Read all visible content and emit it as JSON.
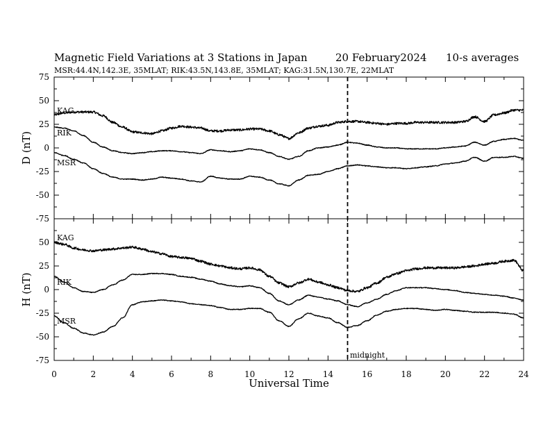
{
  "title": {
    "main": "Magnetic Field Variations at 3 Stations in Japan",
    "date": "20 February2024",
    "averaging": "10-s averages",
    "stations": "MSR:44.4N,142.3E, 35MLAT;  RIK:43.5N,143.8E, 35MLAT;  KAG:31.5N,130.7E, 22MLAT"
  },
  "chart_data": [
    {
      "type": "line",
      "panel": "D",
      "ylabel": "D (nT)",
      "ylim": [
        -75,
        75
      ],
      "yticks": [
        75,
        50,
        25,
        0,
        -25,
        -50,
        -75
      ],
      "xlim": [
        0,
        24
      ],
      "series": [
        {
          "name": "KAG",
          "noise": 1.2,
          "x": [
            0,
            0.5,
            1,
            1.5,
            2,
            2.5,
            3,
            3.5,
            4,
            4.5,
            5,
            5.5,
            6,
            6.5,
            7,
            7.5,
            8,
            8.5,
            9,
            9.5,
            10,
            10.5,
            11,
            11.5,
            12,
            12.5,
            13,
            13.5,
            14,
            14.5,
            15,
            15.5,
            16,
            16.5,
            17,
            17.5,
            18,
            18.5,
            19,
            19.5,
            20,
            20.5,
            21,
            21.5,
            22,
            22.5,
            23,
            23.5,
            24
          ],
          "values": [
            35,
            37,
            38,
            38,
            38,
            34,
            27,
            22,
            17,
            16,
            15,
            18,
            21,
            23,
            22,
            21,
            18,
            18,
            19,
            19,
            20,
            20,
            18,
            14,
            10,
            16,
            21,
            23,
            24,
            27,
            28,
            28,
            27,
            26,
            25,
            26,
            26,
            27,
            27,
            27,
            27,
            27,
            28,
            33,
            28,
            35,
            37,
            40,
            40
          ]
        },
        {
          "name": "RIK",
          "noise": 0.4,
          "x": [
            0,
            0.5,
            1,
            1.5,
            2,
            2.5,
            3,
            3.5,
            4,
            4.5,
            5,
            5.5,
            6,
            6.5,
            7,
            7.5,
            8,
            8.5,
            9,
            9.5,
            10,
            10.5,
            11,
            11.5,
            12,
            12.5,
            13,
            13.5,
            14,
            14.5,
            15,
            15.5,
            16,
            16.5,
            17,
            17.5,
            18,
            18.5,
            19,
            19.5,
            20,
            20.5,
            21,
            21.5,
            22,
            22.5,
            23,
            23.5,
            24
          ],
          "values": [
            22,
            21,
            18,
            13,
            6,
            1,
            -3,
            -5,
            -6,
            -5,
            -4,
            -3,
            -3,
            -4,
            -5,
            -6,
            -2,
            -3,
            -4,
            -3,
            -1,
            -2,
            -5,
            -9,
            -12,
            -9,
            -3,
            0,
            1,
            3,
            6,
            5,
            3,
            1,
            0,
            0,
            -1,
            -1,
            -1,
            -1,
            0,
            1,
            2,
            6,
            3,
            7,
            9,
            10,
            8
          ]
        },
        {
          "name": "MSR",
          "noise": 0.4,
          "x": [
            0,
            0.5,
            1,
            1.5,
            2,
            2.5,
            3,
            3.5,
            4,
            4.5,
            5,
            5.5,
            6,
            6.5,
            7,
            7.5,
            8,
            8.5,
            9,
            9.5,
            10,
            10.5,
            11,
            11.5,
            12,
            12.5,
            13,
            13.5,
            14,
            14.5,
            15,
            15.5,
            16,
            16.5,
            17,
            17.5,
            18,
            18.5,
            19,
            19.5,
            20,
            20.5,
            21,
            21.5,
            22,
            22.5,
            23,
            23.5,
            24
          ],
          "values": [
            -5,
            -8,
            -12,
            -16,
            -22,
            -27,
            -31,
            -33,
            -33,
            -34,
            -33,
            -31,
            -32,
            -33,
            -35,
            -36,
            -30,
            -32,
            -33,
            -33,
            -30,
            -31,
            -34,
            -38,
            -40,
            -34,
            -29,
            -28,
            -25,
            -22,
            -19,
            -18,
            -19,
            -20,
            -21,
            -21,
            -22,
            -21,
            -20,
            -19,
            -17,
            -16,
            -14,
            -10,
            -14,
            -10,
            -10,
            -9,
            -11
          ]
        }
      ],
      "annotations": [
        "KAG",
        "RIK",
        "MSR"
      ]
    },
    {
      "type": "line",
      "panel": "H",
      "ylabel": "H (nT)",
      "xlabel": "Universal Time",
      "ylim": [
        -75,
        75
      ],
      "yticks": [
        50,
        25,
        0,
        -25,
        -50,
        -75
      ],
      "xlim": [
        0,
        24
      ],
      "xticks": [
        0,
        2,
        4,
        6,
        8,
        10,
        12,
        14,
        16,
        18,
        20,
        22,
        24
      ],
      "series": [
        {
          "name": "KAG",
          "noise": 1.2,
          "x": [
            0,
            0.5,
            1,
            1.5,
            2,
            2.5,
            3,
            3.5,
            4,
            4.5,
            5,
            5.5,
            6,
            6.5,
            7,
            7.5,
            8,
            8.5,
            9,
            9.5,
            10,
            10.5,
            11,
            11.5,
            12,
            12.5,
            13,
            13.5,
            14,
            14.5,
            15,
            15.5,
            16,
            16.5,
            17,
            17.5,
            18,
            18.5,
            19,
            19.5,
            20,
            20.5,
            21,
            21.5,
            22,
            22.5,
            23,
            23.5,
            24
          ],
          "values": [
            50,
            48,
            44,
            42,
            41,
            42,
            43,
            44,
            45,
            43,
            40,
            38,
            35,
            34,
            33,
            30,
            27,
            25,
            23,
            22,
            23,
            21,
            14,
            7,
            3,
            7,
            11,
            8,
            5,
            2,
            -1,
            -2,
            2,
            7,
            13,
            17,
            20,
            22,
            23,
            23,
            23,
            23,
            24,
            25,
            27,
            28,
            30,
            31,
            20
          ]
        },
        {
          "name": "RIK",
          "noise": 0.4,
          "x": [
            0,
            0.5,
            1,
            1.5,
            2,
            2.5,
            3,
            3.5,
            4,
            4.5,
            5,
            5.5,
            6,
            6.5,
            7,
            7.5,
            8,
            8.5,
            9,
            9.5,
            10,
            10.5,
            11,
            11.5,
            12,
            12.5,
            13,
            13.5,
            14,
            14.5,
            15,
            15.5,
            16,
            16.5,
            17,
            17.5,
            18,
            18.5,
            19,
            19.5,
            20,
            20.5,
            21,
            21.5,
            22,
            22.5,
            23,
            23.5,
            24
          ],
          "values": [
            14,
            8,
            2,
            -2,
            -3,
            0,
            5,
            10,
            16,
            16,
            17,
            17,
            16,
            14,
            13,
            11,
            9,
            6,
            4,
            3,
            4,
            2,
            -4,
            -12,
            -16,
            -11,
            -6,
            -8,
            -10,
            -12,
            -16,
            -18,
            -14,
            -10,
            -5,
            -1,
            2,
            2,
            2,
            1,
            0,
            -1,
            -3,
            -4,
            -5,
            -6,
            -7,
            -9,
            -11
          ]
        },
        {
          "name": "MSR",
          "noise": 0.4,
          "x": [
            0,
            0.5,
            1,
            1.5,
            2,
            2.5,
            3,
            3.5,
            4,
            4.5,
            5,
            5.5,
            6,
            6.5,
            7,
            7.5,
            8,
            8.5,
            9,
            9.5,
            10,
            10.5,
            11,
            11.5,
            12,
            12.5,
            13,
            13.5,
            14,
            14.5,
            15,
            15.5,
            16,
            16.5,
            17,
            17.5,
            18,
            18.5,
            19,
            19.5,
            20,
            20.5,
            21,
            21.5,
            22,
            22.5,
            23,
            23.5,
            24
          ],
          "values": [
            -28,
            -35,
            -41,
            -46,
            -48,
            -45,
            -39,
            -30,
            -16,
            -13,
            -12,
            -11,
            -12,
            -13,
            -15,
            -16,
            -17,
            -19,
            -21,
            -21,
            -20,
            -20,
            -24,
            -33,
            -39,
            -31,
            -25,
            -28,
            -30,
            -35,
            -40,
            -38,
            -33,
            -27,
            -23,
            -21,
            -20,
            -20,
            -21,
            -22,
            -21,
            -22,
            -23,
            -24,
            -24,
            -24,
            -25,
            -26,
            -30
          ]
        }
      ],
      "annotations": [
        "KAG",
        "RIK",
        "MSR",
        "midnight"
      ],
      "vline_x": 15
    }
  ],
  "labels": {
    "kag": "KAG",
    "rik": "RIK",
    "msr": "MSR",
    "midnight": "midnight",
    "d_axis": "D (nT)",
    "h_axis": "H (nT)",
    "x_axis": "Universal Time"
  }
}
